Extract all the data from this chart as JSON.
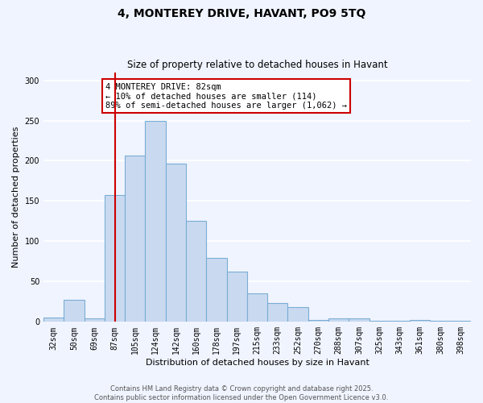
{
  "title": "4, MONTEREY DRIVE, HAVANT, PO9 5TQ",
  "subtitle": "Size of property relative to detached houses in Havant",
  "xlabel": "Distribution of detached houses by size in Havant",
  "ylabel": "Number of detached properties",
  "bar_labels": [
    "32sqm",
    "50sqm",
    "69sqm",
    "87sqm",
    "105sqm",
    "124sqm",
    "142sqm",
    "160sqm",
    "178sqm",
    "197sqm",
    "215sqm",
    "233sqm",
    "252sqm",
    "270sqm",
    "288sqm",
    "307sqm",
    "325sqm",
    "343sqm",
    "361sqm",
    "380sqm",
    "398sqm"
  ],
  "bar_values": [
    5,
    27,
    4,
    157,
    206,
    250,
    196,
    125,
    79,
    62,
    35,
    23,
    18,
    2,
    4,
    4,
    1,
    1,
    2,
    1,
    1
  ],
  "bar_color": "#c9daf0",
  "bar_edge_color": "#7aadd4",
  "vline_x_index": 3,
  "vline_color": "#cc0000",
  "annotation_title": "4 MONTEREY DRIVE: 82sqm",
  "annotation_line2": "← 10% of detached houses are smaller (114)",
  "annotation_line3": "89% of semi-detached houses are larger (1,062) →",
  "annotation_box_edgecolor": "#cc0000",
  "ylim": [
    0,
    310
  ],
  "yticks": [
    0,
    50,
    100,
    150,
    200,
    250,
    300
  ],
  "footer_line1": "Contains HM Land Registry data © Crown copyright and database right 2025.",
  "footer_line2": "Contains public sector information licensed under the Open Government Licence v3.0.",
  "background_color": "#f0f4ff",
  "grid_color": "#ffffff",
  "title_fontsize": 10,
  "subtitle_fontsize": 8.5,
  "ylabel_fontsize": 8,
  "xlabel_fontsize": 8,
  "tick_fontsize": 7,
  "footer_fontsize": 6,
  "annotation_fontsize": 7.5
}
